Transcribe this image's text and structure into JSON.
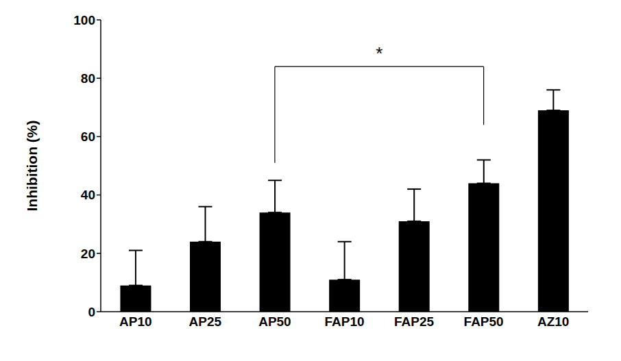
{
  "chart_data": {
    "type": "bar",
    "categories": [
      "AP10",
      "AP25",
      "AP50",
      "FAP10",
      "FAP25",
      "FAP50",
      "AZ10"
    ],
    "values": [
      9,
      24,
      34,
      11,
      31,
      44,
      69
    ],
    "errors": [
      12,
      12,
      11,
      13,
      11,
      8,
      7
    ],
    "color": "#000000",
    "y_label": "Inhibition (%)",
    "ylim": [
      0,
      100
    ],
    "yticks": [
      0,
      20,
      40,
      60,
      80,
      100
    ],
    "grid": false,
    "annotations": [
      {
        "text": "*",
        "from": "AP50",
        "to": "FAP50",
        "y": 84,
        "from_y": 51,
        "to_y": 64
      }
    ]
  }
}
